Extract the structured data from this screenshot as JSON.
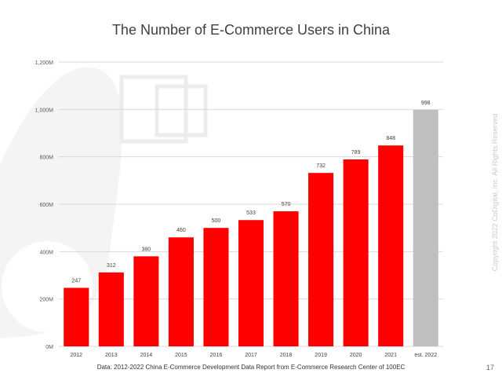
{
  "slide": {
    "title": "The Number of E-Commerce Users in China",
    "copyright": "Copyright 2022 CoDigital, Inc. All Rights Reserved",
    "source": "Data: 2012-2022 China E-Commerce Development Data Report from E-Commerce Research Center of 100EC",
    "page_number": "17"
  },
  "colors": {
    "bar": "#ff0000",
    "estimate_bar": "#bfbfbf",
    "grid": "#d9d9d9",
    "deco": "#f2f2f2"
  },
  "chart_data": {
    "type": "bar",
    "title": "The Number of E-Commerce Users in China",
    "categories": [
      "2012",
      "2013",
      "2014",
      "2015",
      "2016",
      "2017",
      "2018",
      "2019",
      "2020",
      "2021",
      "est. 2022"
    ],
    "values": [
      247,
      312,
      380,
      460,
      500,
      533,
      570,
      732,
      789,
      848,
      998
    ],
    "data_labels": [
      "247",
      "312",
      "380",
      "460",
      "500",
      "533",
      "570",
      "732",
      "789",
      "848",
      "998"
    ],
    "estimated": [
      false,
      false,
      false,
      false,
      false,
      false,
      false,
      false,
      false,
      false,
      true
    ],
    "yticks": [
      0,
      200,
      400,
      600,
      800,
      1000,
      1200
    ],
    "ytick_labels": [
      "0M",
      "200M",
      "400M",
      "600M",
      "800M",
      "1,000M",
      "1,200M"
    ],
    "ylim": [
      0,
      1200
    ],
    "xlabel": "",
    "ylabel": "",
    "grid": true
  }
}
